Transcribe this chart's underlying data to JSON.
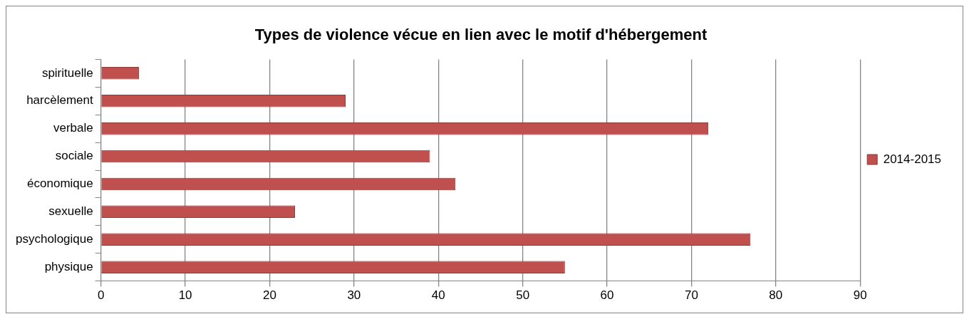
{
  "chart_data": {
    "type": "bar",
    "orientation": "horizontal",
    "title": "Types de violence vécue en lien avec le motif d'hébergement",
    "categories": [
      "spirituelle",
      "harcèlement",
      "verbale",
      "sociale",
      "économique",
      "sexuelle",
      "psychologique",
      "physique"
    ],
    "series": [
      {
        "name": "2014-2015",
        "color": "#c0504d",
        "values": [
          4.5,
          29,
          72,
          39,
          42,
          23,
          77,
          55
        ]
      }
    ],
    "xlim": [
      0,
      90
    ],
    "xticks": [
      0,
      10,
      20,
      30,
      40,
      50,
      60,
      70,
      80,
      90
    ],
    "grid": "x",
    "legend": "right"
  }
}
